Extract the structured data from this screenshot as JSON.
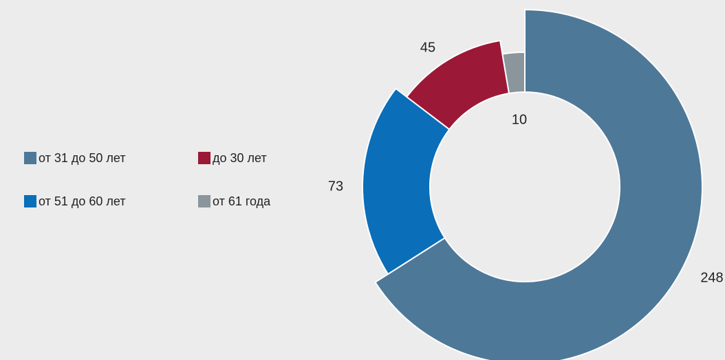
{
  "chart_data": {
    "type": "donut",
    "categories": [
      "от 31 до 50 лет",
      "от 51 до 60 лет",
      "до 30 лет",
      "от 61 года"
    ],
    "values": [
      248,
      73,
      45,
      10
    ],
    "colors": [
      "#4e7898",
      "#0a6eb8",
      "#9c1837",
      "#8a959c"
    ]
  }
}
